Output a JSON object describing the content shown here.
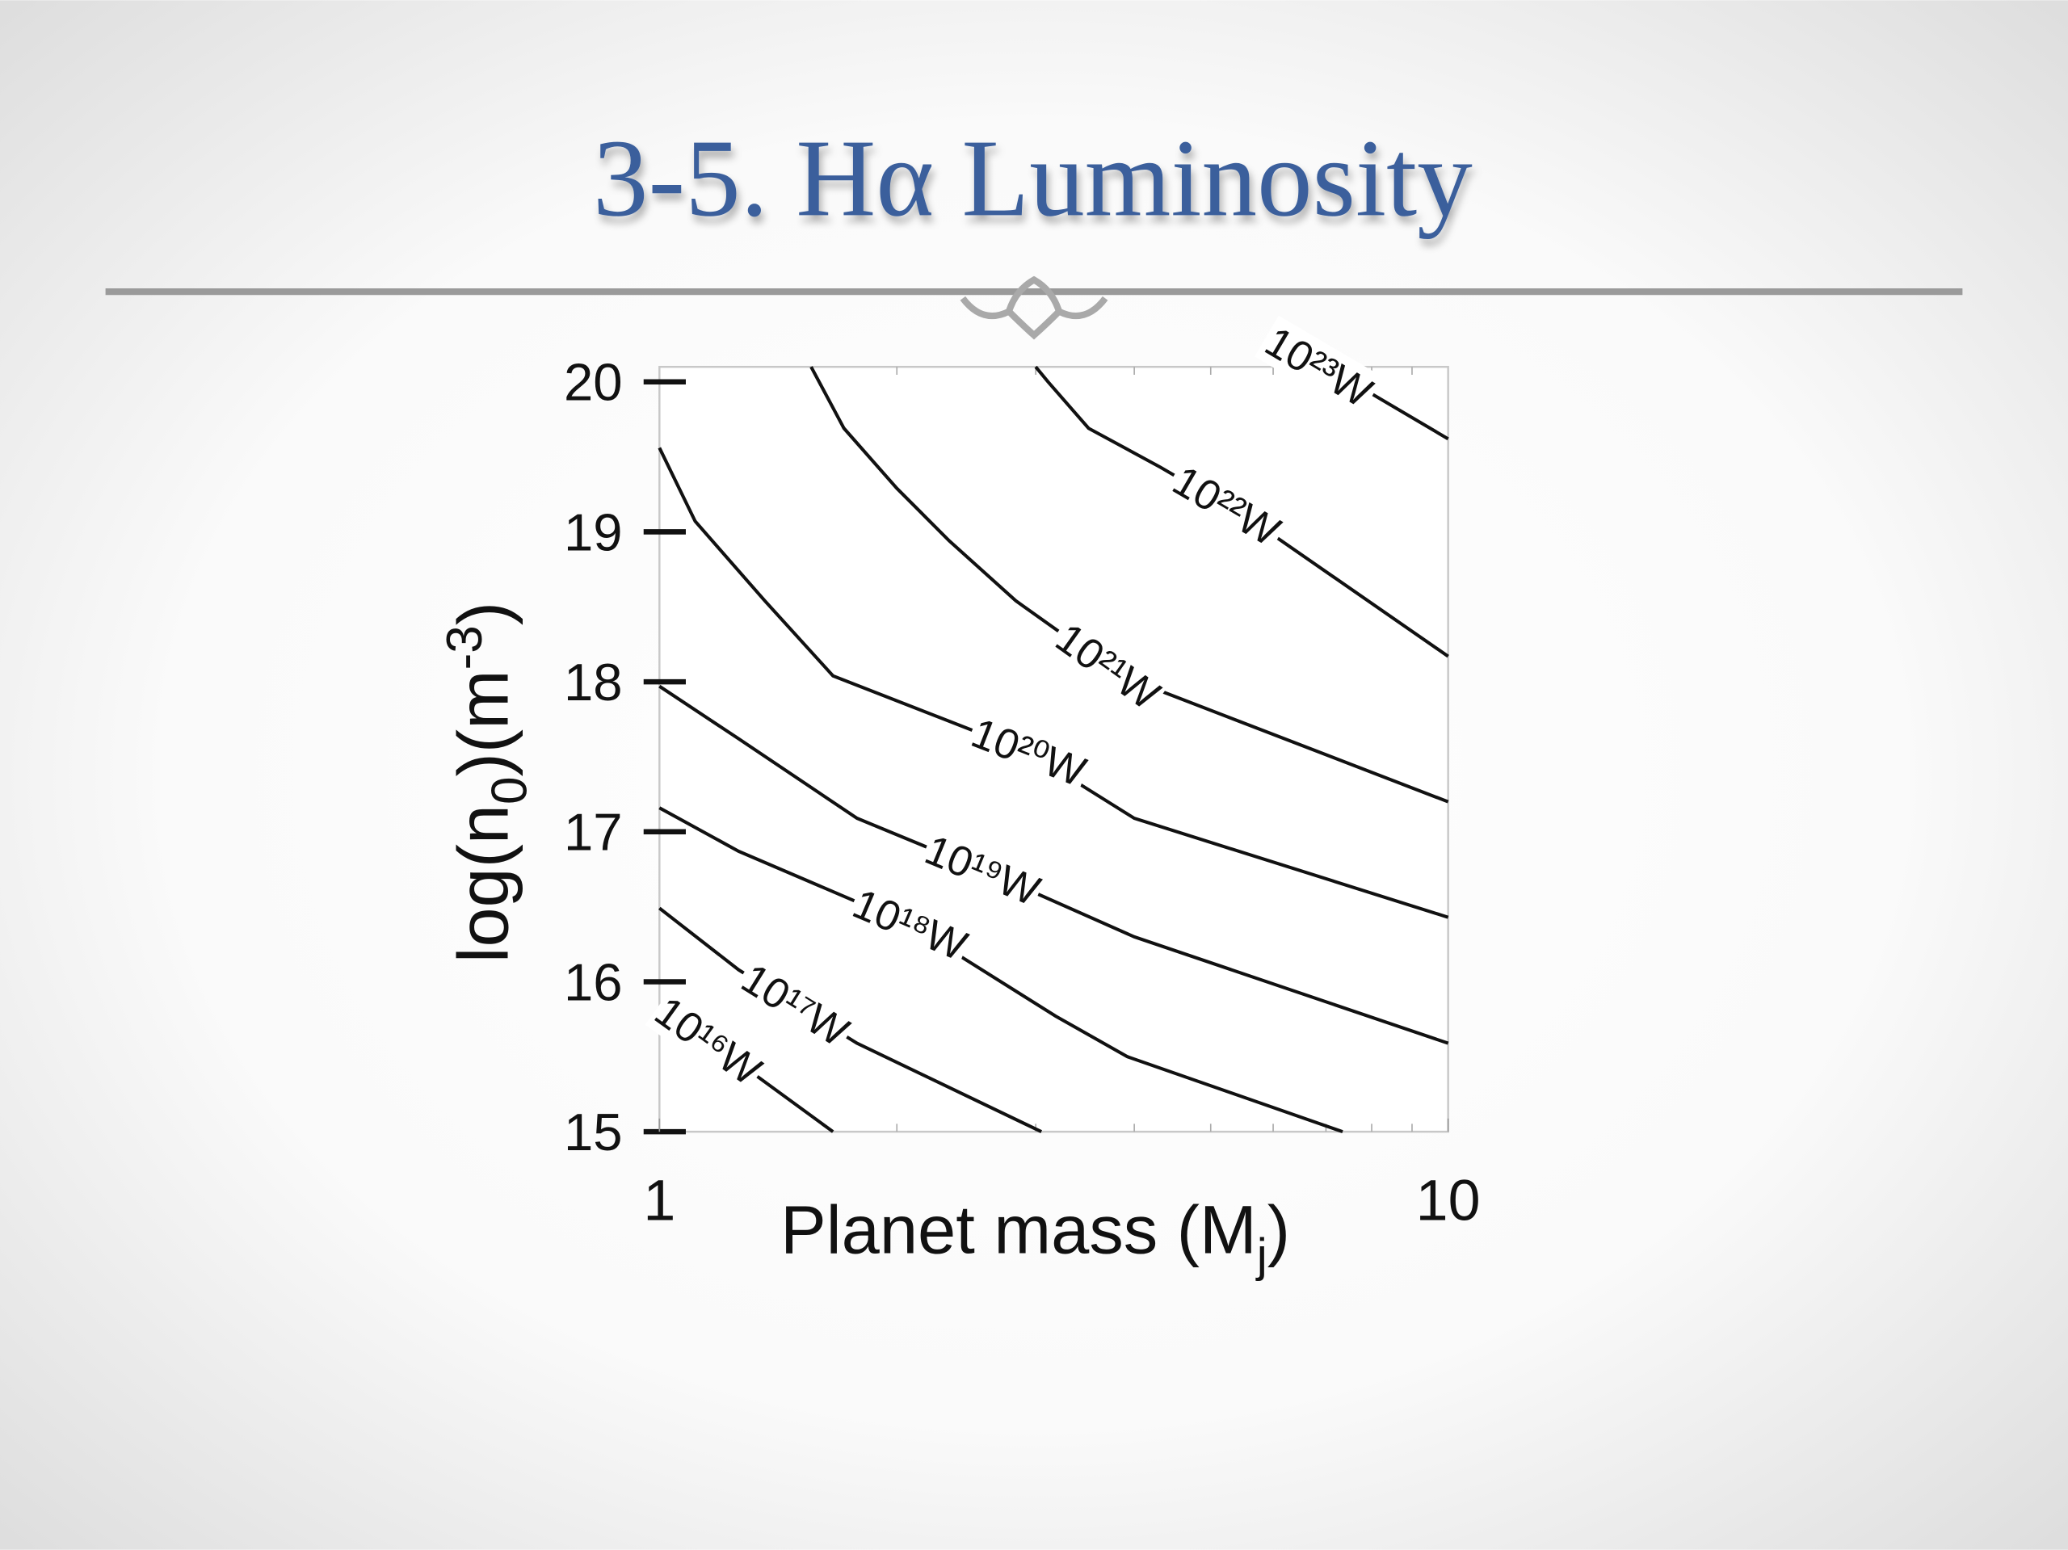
{
  "slide": {
    "title": "3-5. Hα Luminosity"
  },
  "chart_data": {
    "type": "contour",
    "x_label": {
      "text": "Planet mass (M",
      "sub": "j",
      "end": ")"
    },
    "y_label": {
      "text": "log(n",
      "sub": "0",
      "mid": ")(m",
      "sup": "-3",
      "end": ")"
    },
    "xlim": [
      1,
      10
    ],
    "xticks": [
      1,
      10
    ],
    "xminorticks": [
      2,
      3,
      4,
      5,
      6,
      7,
      8,
      9
    ],
    "xscale": "log",
    "ylim": [
      15,
      20.1
    ],
    "yticks": [
      15,
      16,
      17,
      18,
      19,
      20
    ],
    "color": "#111111",
    "series": [
      {
        "name": "10²³W",
        "x": [
          7.0,
          10
        ],
        "values": [
          20.1,
          19.62
        ]
      },
      {
        "name": "10²²W",
        "x": [
          3.0,
          3.11,
          3.5,
          4.32,
          5.66,
          10
        ],
        "values": [
          20.1,
          20.0,
          19.69,
          19.43,
          19.07,
          18.17
        ]
      },
      {
        "name": "10²¹W",
        "x": [
          1.557,
          1.714,
          2.0,
          2.33,
          2.83,
          3.85,
          10
        ],
        "values": [
          20.1,
          19.69,
          19.29,
          18.94,
          18.54,
          18.04,
          17.2
        ]
      },
      {
        "name": "10²⁰W",
        "x": [
          1,
          1.11,
          1.36,
          1.66,
          2.94,
          4.0,
          10
        ],
        "values": [
          19.56,
          19.07,
          18.54,
          18.04,
          17.53,
          17.09,
          16.43
        ]
      },
      {
        "name": "10¹⁹W",
        "x": [
          1,
          1.26,
          1.78,
          2.72,
          4.0,
          10
        ],
        "values": [
          17.97,
          17.62,
          17.09,
          16.69,
          16.3,
          15.59
        ]
      },
      {
        "name": "10¹⁸W",
        "x": [
          1,
          1.26,
          2.08,
          3.18,
          3.92,
          7.35
        ],
        "values": [
          17.16,
          16.87,
          16.38,
          15.77,
          15.5,
          15.0
        ]
      },
      {
        "name": "10¹⁷W",
        "x": [
          1,
          1.26,
          1.78,
          3.05
        ],
        "values": [
          16.49,
          16.08,
          15.59,
          15.0
        ]
      },
      {
        "name": "10¹⁶W",
        "x": [
          1,
          1.26,
          1.66
        ],
        "values": [
          15.84,
          15.46,
          15.0
        ]
      }
    ]
  }
}
